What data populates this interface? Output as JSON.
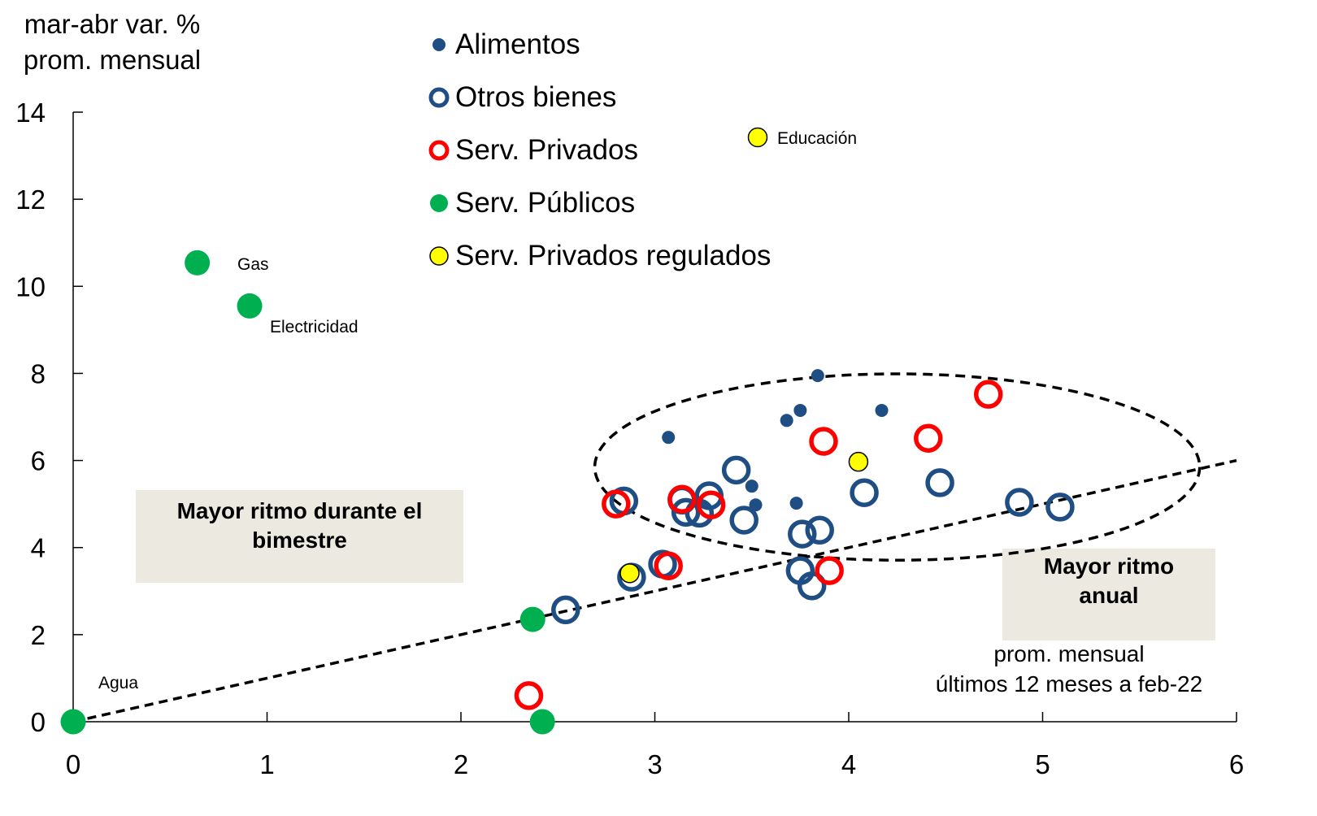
{
  "chart_data": {
    "type": "scatter",
    "title": "",
    "ylabel": [
      "mar-abr var. %",
      "prom. mensual"
    ],
    "xlabel": [
      "prom. mensual",
      "últimos 12 meses a feb-22"
    ],
    "xlim": [
      0,
      6
    ],
    "ylim": [
      0,
      14
    ],
    "xticks": [
      0,
      1,
      2,
      3,
      4,
      5,
      6
    ],
    "yticks": [
      0,
      2,
      4,
      6,
      8,
      10,
      12,
      14
    ],
    "grid": false,
    "legend_position": "top-center",
    "series": [
      {
        "name": "Alimentos",
        "style": "small-filled",
        "color": "#1f4e84",
        "points": [
          {
            "x": 3.07,
            "y": 6.53
          },
          {
            "x": 3.84,
            "y": 7.95
          },
          {
            "x": 3.75,
            "y": 7.15
          },
          {
            "x": 3.68,
            "y": 6.92
          },
          {
            "x": 4.17,
            "y": 7.15
          },
          {
            "x": 3.5,
            "y": 5.41
          },
          {
            "x": 3.52,
            "y": 4.98
          },
          {
            "x": 3.73,
            "y": 5.02
          }
        ]
      },
      {
        "name": "Otros bienes",
        "style": "ring",
        "color": "#1f4e84",
        "points": [
          {
            "x": 2.84,
            "y": 5.07
          },
          {
            "x": 3.42,
            "y": 5.78
          },
          {
            "x": 4.08,
            "y": 5.26
          },
          {
            "x": 4.47,
            "y": 5.49
          },
          {
            "x": 4.88,
            "y": 5.04
          },
          {
            "x": 5.09,
            "y": 4.93
          },
          {
            "x": 3.46,
            "y": 4.63
          },
          {
            "x": 3.76,
            "y": 4.31
          },
          {
            "x": 3.85,
            "y": 4.4
          },
          {
            "x": 3.16,
            "y": 4.81
          },
          {
            "x": 3.23,
            "y": 4.79
          },
          {
            "x": 3.28,
            "y": 5.19
          },
          {
            "x": 3.14,
            "y": 5.09
          },
          {
            "x": 3.04,
            "y": 3.62
          },
          {
            "x": 2.88,
            "y": 3.32
          },
          {
            "x": 3.75,
            "y": 3.47
          },
          {
            "x": 3.81,
            "y": 3.12
          },
          {
            "x": 2.54,
            "y": 2.57
          }
        ]
      },
      {
        "name": "Serv. Privados",
        "style": "ring",
        "color": "#ff0000",
        "points": [
          {
            "x": 2.8,
            "y": 5.0
          },
          {
            "x": 3.14,
            "y": 5.11
          },
          {
            "x": 3.29,
            "y": 4.98
          },
          {
            "x": 3.87,
            "y": 6.44
          },
          {
            "x": 4.41,
            "y": 6.51
          },
          {
            "x": 4.72,
            "y": 7.52
          },
          {
            "x": 3.07,
            "y": 3.58
          },
          {
            "x": 3.9,
            "y": 3.47
          },
          {
            "x": 2.35,
            "y": 0.6
          }
        ]
      },
      {
        "name": "Serv. Públicos",
        "style": "large-filled",
        "color": "#00b050",
        "points": [
          {
            "x": 0.64,
            "y": 10.54,
            "label": "Gas"
          },
          {
            "x": 0.91,
            "y": 9.55,
            "label": "Electricidad"
          },
          {
            "x": 0.0,
            "y": 0.0,
            "label": "Agua"
          },
          {
            "x": 2.37,
            "y": 2.35
          },
          {
            "x": 2.42,
            "y": 0.0
          }
        ]
      },
      {
        "name": "Serv. Privados regulados",
        "style": "outlined-filled",
        "color": "#ffff00",
        "points": [
          {
            "x": 4.05,
            "y": 5.97,
            "label": "Educación"
          },
          {
            "x": 2.87,
            "y": 3.41
          }
        ]
      }
    ],
    "reference_line": {
      "from": [
        0,
        0
      ],
      "to": [
        6,
        6
      ],
      "style": "dashed"
    },
    "highlight_ellipse": {
      "center": [
        4.25,
        5.85
      ],
      "radius_x": 1.56,
      "radius_y": 2.14,
      "style": "dashed"
    },
    "annotations": [
      {
        "text": "Mayor ritmo durante el bimestre",
        "region": "upper-left"
      },
      {
        "text": "Mayor ritmo anual",
        "region": "lower-right"
      }
    ],
    "educacion_legend_note": "Educación"
  },
  "labels": {
    "ylabel_line1": "mar-abr var. %",
    "ylabel_line2": "prom. mensual",
    "xlabel_line1": "prom. mensual",
    "xlabel_line2": "últimos 12 meses a feb-22",
    "note_left_line1": "Mayor ritmo durante el",
    "note_left_line2": "bimestre",
    "note_right_line1": "Mayor ritmo",
    "note_right_line2": "anual",
    "educacion": "Educación",
    "gas": "Gas",
    "electricidad": "Electricidad",
    "agua": "Agua"
  },
  "legend": [
    {
      "label": "Alimentos"
    },
    {
      "label": "Otros bienes"
    },
    {
      "label": "Serv. Privados"
    },
    {
      "label": "Serv. Públicos"
    },
    {
      "label": "Serv. Privados regulados"
    }
  ]
}
